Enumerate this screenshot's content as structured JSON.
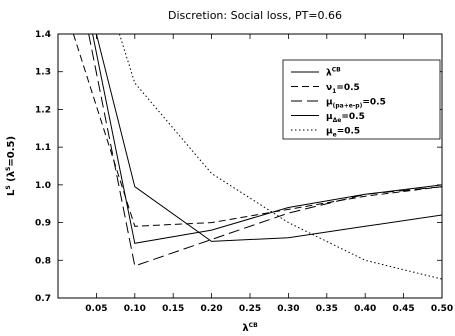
{
  "chart_data": {
    "type": "line",
    "title": "Discretion: Social loss, PT=0.66",
    "xlabel": {
      "base": "λ",
      "sup": "CB"
    },
    "ylabel": {
      "base": "L",
      "sup": "S",
      "rest": " (λ",
      "sup2": "S",
      "tail": "=0.5)"
    },
    "xlim": [
      0,
      0.5
    ],
    "ylim": [
      0.7,
      1.4
    ],
    "xticks": [
      0.05,
      0.1,
      0.15,
      0.2,
      0.25,
      0.3,
      0.35,
      0.4,
      0.45,
      0.5
    ],
    "xtick_labels": [
      "0.05",
      "0.10",
      "0.15",
      "0.20",
      "0.25",
      "0.30",
      "0.35",
      "0.40",
      "0.45",
      "0.50"
    ],
    "yticks": [
      0.7,
      0.8,
      0.9,
      1.0,
      1.1,
      1.2,
      1.3,
      1.4
    ],
    "ytick_labels": [
      "0.7",
      "0.8",
      "0.9",
      "1.0",
      "1.1",
      "1.2",
      "1.3",
      "1.4"
    ],
    "legend_position": "top-right",
    "series": [
      {
        "legend": {
          "base": "λ",
          "sup": "CB",
          "sub": "",
          "tail": ""
        },
        "style": "solid",
        "x": [
          0.05,
          0.1,
          0.2,
          0.3,
          0.4,
          0.5
        ],
        "y": [
          1.4,
          0.995,
          0.85,
          0.86,
          0.89,
          0.92
        ]
      },
      {
        "legend": {
          "base": "ν",
          "sup": "",
          "sub": "1",
          "tail": "=0.5"
        },
        "style": "dashed",
        "x": [
          0.02,
          0.1,
          0.2,
          0.3,
          0.4,
          0.5
        ],
        "y": [
          1.4,
          0.89,
          0.9,
          0.935,
          0.97,
          0.995
        ]
      },
      {
        "legend": {
          "base": "μ",
          "sup": "",
          "sub": "(pa+e-p)",
          "tail": "=0.5"
        },
        "style": "longdash",
        "x": [
          0.04,
          0.1,
          0.2,
          0.3,
          0.4,
          0.5
        ],
        "y": [
          1.4,
          0.785,
          0.855,
          0.925,
          0.975,
          0.995
        ]
      },
      {
        "legend": {
          "base": "μ",
          "sup": "",
          "sub": "Δe",
          "tail": "=0.5"
        },
        "style": "solid",
        "x": [
          0.045,
          0.1,
          0.2,
          0.3,
          0.4,
          0.5
        ],
        "y": [
          1.4,
          0.845,
          0.88,
          0.94,
          0.975,
          1.0
        ]
      },
      {
        "legend": {
          "base": "μ",
          "sup": "",
          "sub": "e",
          "tail": "=0.5"
        },
        "style": "dotted",
        "x": [
          0.08,
          0.1,
          0.2,
          0.3,
          0.4,
          0.5
        ],
        "y": [
          1.4,
          1.27,
          1.03,
          0.9,
          0.8,
          0.75
        ]
      }
    ]
  }
}
